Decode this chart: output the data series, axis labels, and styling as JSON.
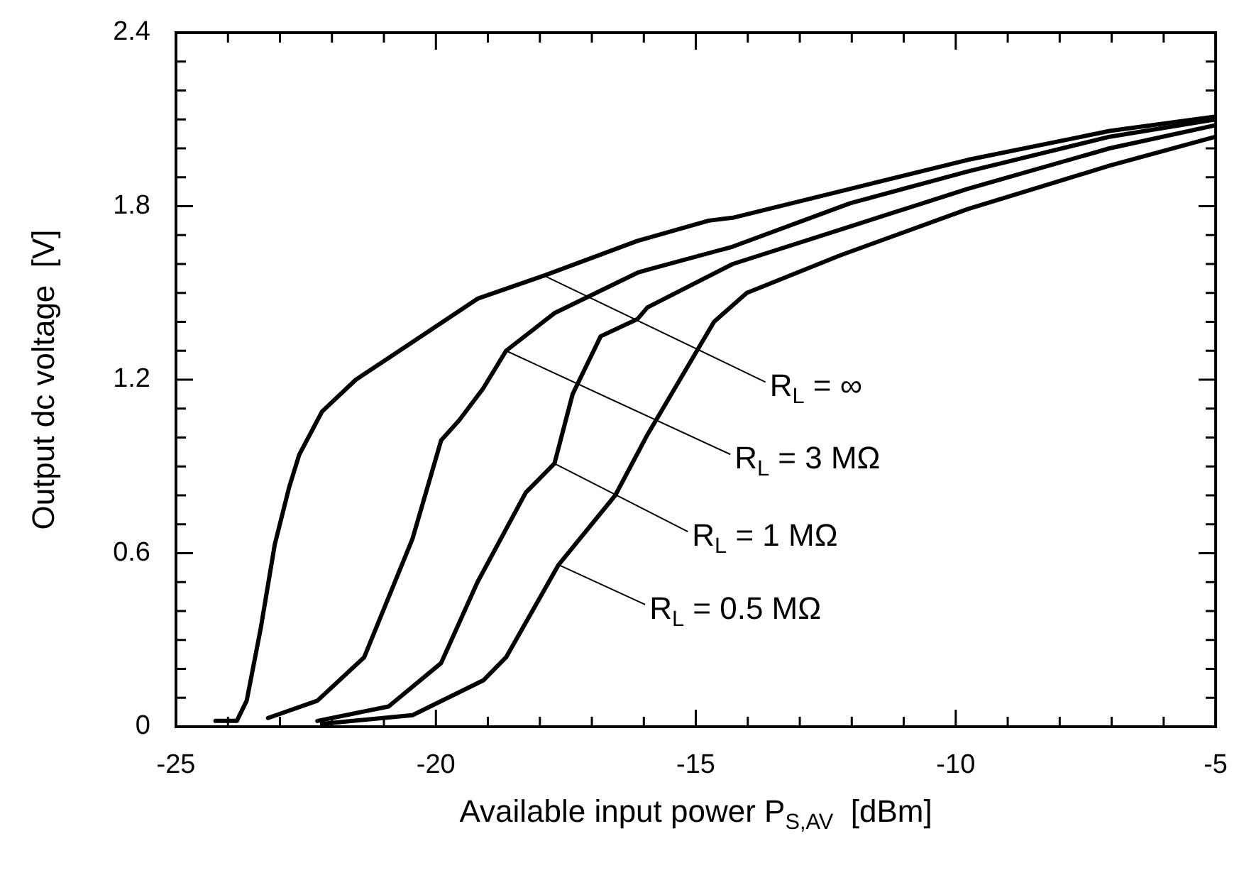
{
  "chart_data": {
    "type": "line",
    "xlabel": "Available input power P$_{S,AV}$  [dBm]",
    "ylabel": "Output dc voltage  [V]",
    "xlim": [
      -25,
      -5
    ],
    "ylim": [
      0,
      2.4
    ],
    "xticks": [
      -25,
      {
        "value": -24,
        "label": null
      },
      {
        "value": -23,
        "label": null
      },
      {
        "value": -22,
        "label": null
      },
      {
        "value": -21,
        "label": null
      },
      -20,
      {
        "value": -19,
        "label": null
      },
      {
        "value": -18,
        "label": null
      },
      {
        "value": -17,
        "label": null
      },
      {
        "value": -16,
        "label": null
      },
      -15,
      {
        "value": -14,
        "label": null
      },
      {
        "value": -13,
        "label": null
      },
      {
        "value": -12,
        "label": null
      },
      {
        "value": -11,
        "label": null
      },
      -10,
      {
        "value": -9,
        "label": null
      },
      {
        "value": -8,
        "label": null
      },
      {
        "value": -7,
        "label": null
      },
      {
        "value": -6,
        "label": null
      },
      -5
    ],
    "yticks": [
      0,
      {
        "value": 0.1,
        "label": null
      },
      {
        "value": 0.2,
        "label": null
      },
      {
        "value": 0.3,
        "label": null
      },
      {
        "value": 0.4,
        "label": null
      },
      {
        "value": 0.5,
        "label": null
      },
      0.6,
      {
        "value": 0.7,
        "label": null
      },
      {
        "value": 0.8,
        "label": null
      },
      {
        "value": 0.9,
        "label": null
      },
      {
        "value": 1.0,
        "label": null
      },
      {
        "value": 1.1,
        "label": null
      },
      1.2,
      {
        "value": 1.3,
        "label": null
      },
      {
        "value": 1.4,
        "label": null
      },
      {
        "value": 1.5,
        "label": null
      },
      {
        "value": 1.6,
        "label": null
      },
      {
        "value": 1.7,
        "label": null
      },
      1.8,
      {
        "value": 1.9,
        "label": null
      },
      {
        "value": 2.0,
        "label": null
      },
      {
        "value": 2.1,
        "label": null
      },
      {
        "value": 2.2,
        "label": null
      },
      {
        "value": 2.3,
        "label": null
      },
      2.4
    ],
    "grid": false,
    "marker": "none",
    "line_style": "solid",
    "series": [
      {
        "color": "#000000",
        "x": [
          -24.24,
          -23.83,
          -23.64,
          -23.37,
          -23.1,
          -22.82,
          -22.63,
          -22.19,
          -21.54,
          -20.45,
          -19.2,
          -17.92,
          -16.12,
          -14.75,
          -14.29,
          -12.03,
          -9.77,
          -7.04,
          -5
        ],
        "values": [
          0.02,
          0.02,
          0.09,
          0.34,
          0.63,
          0.83,
          0.94,
          1.09,
          1.2,
          1.33,
          1.48,
          1.56,
          1.68,
          1.75,
          1.76,
          1.86,
          1.96,
          2.06,
          2.11
        ]
      },
      {
        "color": "#000000",
        "x": [
          -23.23,
          -22.28,
          -21.38,
          -20.45,
          -19.9,
          -19.55,
          -19.09,
          -18.65,
          -17.72,
          -16.12,
          -15.93,
          -14.29,
          -12.03,
          -9.77,
          -7.04,
          -5
        ],
        "values": [
          0.03,
          0.09,
          0.24,
          0.65,
          0.99,
          1.06,
          1.17,
          1.3,
          1.43,
          1.57,
          1.58,
          1.66,
          1.81,
          1.92,
          2.04,
          2.1
        ]
      },
      {
        "color": "#000000",
        "x": [
          -22.28,
          -20.91,
          -19.9,
          -19.2,
          -18.27,
          -17.72,
          -17.37,
          -16.83,
          -16.12,
          -15.93,
          -14.29,
          -12.03,
          -9.77,
          -7.04,
          -5
        ],
        "values": [
          0.02,
          0.07,
          0.22,
          0.5,
          0.81,
          0.91,
          1.15,
          1.35,
          1.41,
          1.45,
          1.6,
          1.73,
          1.86,
          2.0,
          2.08
        ]
      },
      {
        "color": "#000000",
        "x": [
          -22.19,
          -20.45,
          -19.09,
          -18.65,
          -17.64,
          -16.55,
          -15.93,
          -14.65,
          -14.02,
          -12.22,
          -9.77,
          -7.04,
          -5
        ],
        "values": [
          0.01,
          0.04,
          0.16,
          0.24,
          0.56,
          0.8,
          1.01,
          1.4,
          1.5,
          1.63,
          1.79,
          1.94,
          2.04
        ]
      }
    ],
    "annotations": [
      {
        "text": "R$_{L}$ = ∞",
        "x": -17.92,
        "y": 1.56
      },
      {
        "text": "R$_{L}$ = 3 MΩ",
        "x": -18.65,
        "y": 1.3
      },
      {
        "text": "R$_{L}$ = 1 MΩ",
        "x": -17.72,
        "y": 0.91
      },
      {
        "text": "R$_{L}$ = 0.5 MΩ",
        "x": -17.64,
        "y": 0.56
      }
    ]
  }
}
